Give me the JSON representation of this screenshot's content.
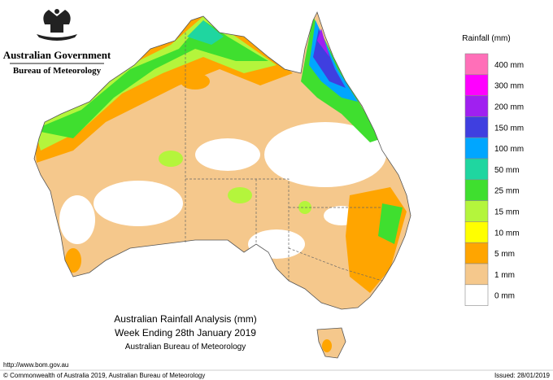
{
  "header": {
    "government": "Australian Government",
    "bureau": "Bureau of Meteorology"
  },
  "legend": {
    "title": "Rainfall (mm)",
    "colors": [
      "#ff6fb8",
      "#ff00ff",
      "#a020f0",
      "#3f3fe0",
      "#00a6ff",
      "#1fd6a0",
      "#3fdf2f",
      "#b4f53c",
      "#ffff00",
      "#ffa500",
      "#f5c88c",
      "#ffffff"
    ],
    "labels": [
      "400 mm",
      "300 mm",
      "200 mm",
      "150 mm",
      "100 mm",
      "50 mm",
      "25 mm",
      "15 mm",
      "10 mm",
      "5 mm",
      "1 mm",
      "0 mm"
    ]
  },
  "caption": {
    "title": "Australian Rainfall Analysis (mm)",
    "period": "Week Ending 28th January 2019",
    "source": "Australian Bureau of Meteorology"
  },
  "footer": {
    "url": "http://www.bom.gov.au",
    "copyright": "© Commonwealth of Australia 2019, Australian Bureau of Meteorology",
    "issued": "Issued: 28/01/2019"
  }
}
